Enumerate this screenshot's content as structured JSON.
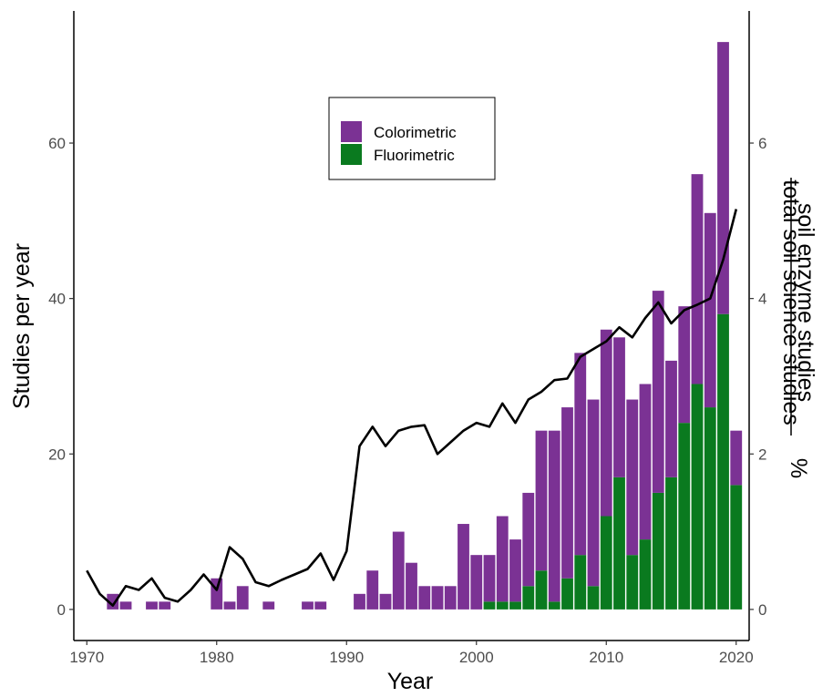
{
  "chart_data": {
    "type": "bar",
    "stacked": true,
    "xlabel": "Year",
    "ylabel": "Studies per year",
    "y2label": {
      "numerator": "soil enzyme studies",
      "denominator": "total soil science studies",
      "unit": "%"
    },
    "xlim": [
      1969,
      2021
    ],
    "ylim": [
      -4,
      77
    ],
    "y2lim": [
      -0.4,
      7.7
    ],
    "x_ticks": [
      1970,
      1980,
      1990,
      2000,
      2010,
      2020
    ],
    "y_ticks": [
      0,
      20,
      40,
      60
    ],
    "y2_ticks": [
      0,
      2,
      4,
      6
    ],
    "grid": false,
    "legend_position": "top-center",
    "colors": {
      "Colorimetric": "#7b3294",
      "Fluorimetric": "#0a7a1f",
      "line": "#000000"
    },
    "series": [
      {
        "name": "Colorimetric",
        "points": [
          [
            1972,
            2
          ],
          [
            1973,
            1
          ],
          [
            1975,
            1
          ],
          [
            1976,
            1
          ],
          [
            1980,
            4
          ],
          [
            1981,
            1
          ],
          [
            1982,
            3
          ],
          [
            1984,
            1
          ],
          [
            1987,
            1
          ],
          [
            1988,
            1
          ],
          [
            1991,
            2
          ],
          [
            1992,
            5
          ],
          [
            1993,
            2
          ],
          [
            1994,
            10
          ],
          [
            1995,
            6
          ],
          [
            1996,
            3
          ],
          [
            1997,
            3
          ],
          [
            1998,
            3
          ],
          [
            1999,
            11
          ],
          [
            2000,
            7
          ],
          [
            2001,
            6
          ],
          [
            2002,
            11
          ],
          [
            2003,
            8
          ],
          [
            2004,
            12
          ],
          [
            2005,
            18
          ],
          [
            2006,
            22
          ],
          [
            2007,
            22
          ],
          [
            2008,
            26
          ],
          [
            2009,
            24
          ],
          [
            2010,
            24
          ],
          [
            2011,
            18
          ],
          [
            2012,
            20
          ],
          [
            2013,
            20
          ],
          [
            2014,
            26
          ],
          [
            2015,
            15
          ],
          [
            2016,
            15
          ],
          [
            2017,
            27
          ],
          [
            2018,
            25
          ],
          [
            2019,
            35
          ],
          [
            2020,
            7
          ]
        ]
      },
      {
        "name": "Fluorimetric",
        "points": [
          [
            2001,
            1
          ],
          [
            2002,
            1
          ],
          [
            2003,
            1
          ],
          [
            2004,
            3
          ],
          [
            2005,
            5
          ],
          [
            2006,
            1
          ],
          [
            2007,
            4
          ],
          [
            2008,
            7
          ],
          [
            2009,
            3
          ],
          [
            2010,
            12
          ],
          [
            2011,
            17
          ],
          [
            2012,
            7
          ],
          [
            2013,
            9
          ],
          [
            2014,
            15
          ],
          [
            2015,
            17
          ],
          [
            2016,
            24
          ],
          [
            2017,
            29
          ],
          [
            2018,
            26
          ],
          [
            2019,
            38
          ],
          [
            2020,
            16
          ]
        ]
      },
      {
        "type": "line",
        "axis": "right",
        "points": [
          [
            1970,
            0.5
          ],
          [
            1971,
            0.2
          ],
          [
            1972,
            0.05
          ],
          [
            1973,
            0.3
          ],
          [
            1974,
            0.25
          ],
          [
            1975,
            0.4
          ],
          [
            1976,
            0.15
          ],
          [
            1977,
            0.1
          ],
          [
            1978,
            0.25
          ],
          [
            1979,
            0.45
          ],
          [
            1980,
            0.25
          ],
          [
            1981,
            0.8
          ],
          [
            1982,
            0.65
          ],
          [
            1983,
            0.35
          ],
          [
            1984,
            0.3
          ],
          [
            1985,
            0.38
          ],
          [
            1986,
            0.45
          ],
          [
            1987,
            0.52
          ],
          [
            1988,
            0.72
          ],
          [
            1989,
            0.38
          ],
          [
            1990,
            0.75
          ],
          [
            1991,
            2.1
          ],
          [
            1992,
            2.35
          ],
          [
            1993,
            2.1
          ],
          [
            1994,
            2.3
          ],
          [
            1995,
            2.35
          ],
          [
            1996,
            2.37
          ],
          [
            1997,
            2.0
          ],
          [
            1998,
            2.15
          ],
          [
            1999,
            2.3
          ],
          [
            2000,
            2.4
          ],
          [
            2001,
            2.35
          ],
          [
            2002,
            2.65
          ],
          [
            2003,
            2.4
          ],
          [
            2004,
            2.7
          ],
          [
            2005,
            2.8
          ],
          [
            2006,
            2.95
          ],
          [
            2007,
            2.97
          ],
          [
            2008,
            3.25
          ],
          [
            2009,
            3.35
          ],
          [
            2010,
            3.45
          ],
          [
            2011,
            3.63
          ],
          [
            2012,
            3.5
          ],
          [
            2013,
            3.75
          ],
          [
            2014,
            3.95
          ],
          [
            2015,
            3.68
          ],
          [
            2016,
            3.85
          ],
          [
            2017,
            3.92
          ],
          [
            2018,
            4.0
          ],
          [
            2019,
            4.5
          ],
          [
            2020,
            5.15
          ]
        ]
      }
    ]
  }
}
